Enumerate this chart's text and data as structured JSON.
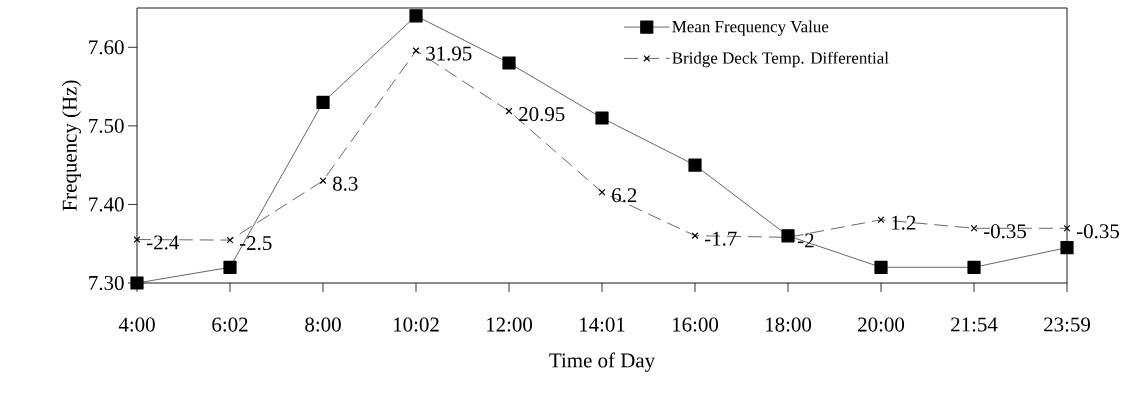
{
  "chart_data": {
    "type": "line",
    "xlabel": "Time of Day",
    "ylabel": "Frequency (Hz)",
    "categories": [
      "4:00",
      "6:02",
      "8:00",
      "10:02",
      "12:00",
      "14:01",
      "16:00",
      "18:00",
      "20:00",
      "21:54",
      "23:59"
    ],
    "series": [
      {
        "name": "Mean Frequency Value",
        "color": "#000000",
        "marker": "square",
        "line_style": "solid",
        "values": [
          7.3,
          7.32,
          7.53,
          7.64,
          7.58,
          7.51,
          7.45,
          7.36,
          7.32,
          7.32,
          7.345
        ]
      },
      {
        "name": "Bridge Deck Temp. Differential",
        "color": "#000000",
        "marker": "cross",
        "line_style": "dashed",
        "axis": "y2",
        "values": [
          -2.4,
          -2.5,
          8.3,
          31.95,
          20.95,
          6.2,
          -1.7,
          -2,
          1.2,
          -0.35,
          -0.35
        ],
        "value_labels": [
          "-2.4",
          "-2.5",
          "8.3",
          "31.95",
          "20.95",
          "6.2",
          "-1.7",
          "-2",
          "1.2",
          "-0.35",
          "-0.35"
        ]
      }
    ],
    "ylim": [
      7.3,
      7.65
    ],
    "yticks": [
      {
        "value": 7.3,
        "label": "7.30"
      },
      {
        "value": 7.4,
        "label": "7.40"
      },
      {
        "value": 7.5,
        "label": "7.50"
      },
      {
        "value": 7.6,
        "label": "7.60"
      }
    ],
    "y2lim": [
      -10.3,
      39.7
    ],
    "grid": false,
    "legend": "top right"
  }
}
